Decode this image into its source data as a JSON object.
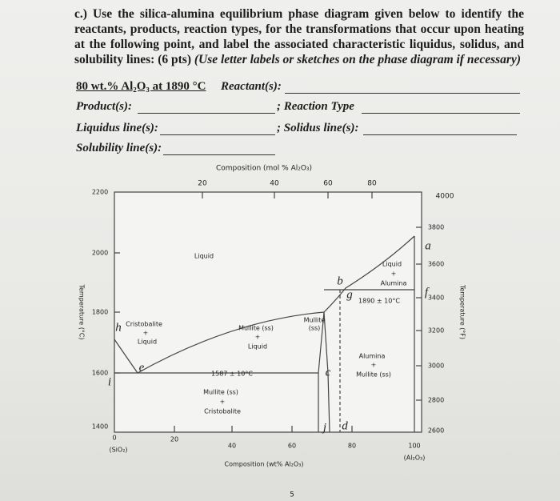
{
  "question": {
    "lead": "c.) Use the silica-alumina equilibrium phase diagram given below to identify the reactants, products, reaction types, for the transformations that occur upon heating at the following point, and label the associated characteristic liquidus, solidus, and solubility lines: (6 pts)",
    "note": "(Use letter labels or sketches on the phase diagram if necessary)"
  },
  "form": {
    "point": "80 wt.% Al₂O₃ at 1890 °C",
    "reactants": "Reactant(s):",
    "products": "Product(s):",
    "reaction_type": "; Reaction Type",
    "liquidus": "Liquidus line(s):",
    "solidus": "; Solidus line(s):",
    "solubility": "Solubility line(s):"
  },
  "diagram": {
    "top_axis_title": "Composition (mol % Al₂O₃)",
    "top_ticks": [
      "20",
      "40",
      "60",
      "80"
    ],
    "left_axis_title": "Temperature (°C)",
    "left_ticks": [
      "2200",
      "2000",
      "1800",
      "1600",
      "1400"
    ],
    "right_axis_title": "Temperature (°F)",
    "right_ticks": [
      "4000",
      "3800",
      "3600",
      "3400",
      "3200",
      "3000",
      "2800",
      "2600"
    ],
    "bottom_axis_title": "Composition (wt% Al₂O₃)",
    "bottom_ticks": [
      "0",
      "20",
      "40",
      "60",
      "80",
      "100"
    ],
    "left_end": "(SiO₂)",
    "right_end": "(Al₂O₃)",
    "regions": [
      "Liquid",
      "Cristobalite",
      "+",
      "Liquid",
      "Mullite (ss)",
      "+",
      "Liquid",
      "Mullite",
      "(ss)",
      "Liquid",
      "+",
      "Alumina",
      "Alumina",
      "+",
      "Mullite (ss)",
      "Mullite (ss)",
      "+",
      "Cristobalite"
    ],
    "isotherms": [
      "1587 ± 10°C",
      "1890 ± 10°C"
    ],
    "letters": [
      "a",
      "b",
      "c",
      "d",
      "e",
      "f",
      "g",
      "h",
      "i",
      "j"
    ]
  },
  "page_number": "5"
}
